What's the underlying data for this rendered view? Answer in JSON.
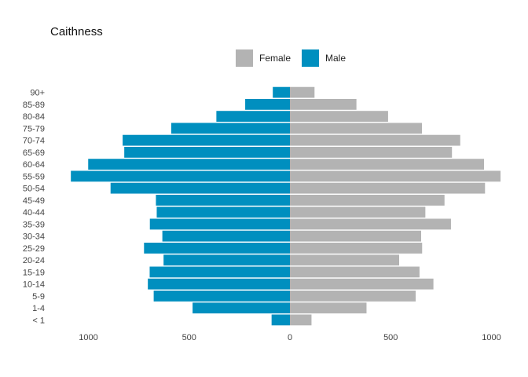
{
  "chart_data": {
    "type": "bar",
    "orientation": "horizontal-population-pyramid",
    "title": "Caithness",
    "categories": [
      "90+",
      "85-89",
      "80-84",
      "75-79",
      "70-74",
      "65-69",
      "60-64",
      "55-59",
      "50-54",
      "45-49",
      "40-44",
      "35-39",
      "30-34",
      "25-29",
      "20-24",
      "15-19",
      "10-14",
      "5-9",
      "1-4",
      "< 1"
    ],
    "series": [
      {
        "name": "Female",
        "color": "#b3b3b3",
        "values": [
          122,
          330,
          487,
          655,
          845,
          804,
          963,
          1045,
          968,
          767,
          672,
          799,
          651,
          656,
          542,
          643,
          712,
          624,
          380,
          107
        ]
      },
      {
        "name": "Male",
        "color": "#008fbf",
        "values": [
          85,
          222,
          365,
          589,
          830,
          822,
          1001,
          1087,
          890,
          665,
          661,
          695,
          633,
          724,
          627,
          696,
          705,
          676,
          483,
          91
        ]
      }
    ],
    "xaxis": {
      "ticks": [
        -1000,
        -500,
        0,
        500,
        1000
      ],
      "tick_labels": [
        "1000",
        "500",
        "0",
        "500",
        "1000"
      ],
      "xlim": [
        -1200,
        1050
      ]
    },
    "legend": "top-center",
    "grid": false
  }
}
